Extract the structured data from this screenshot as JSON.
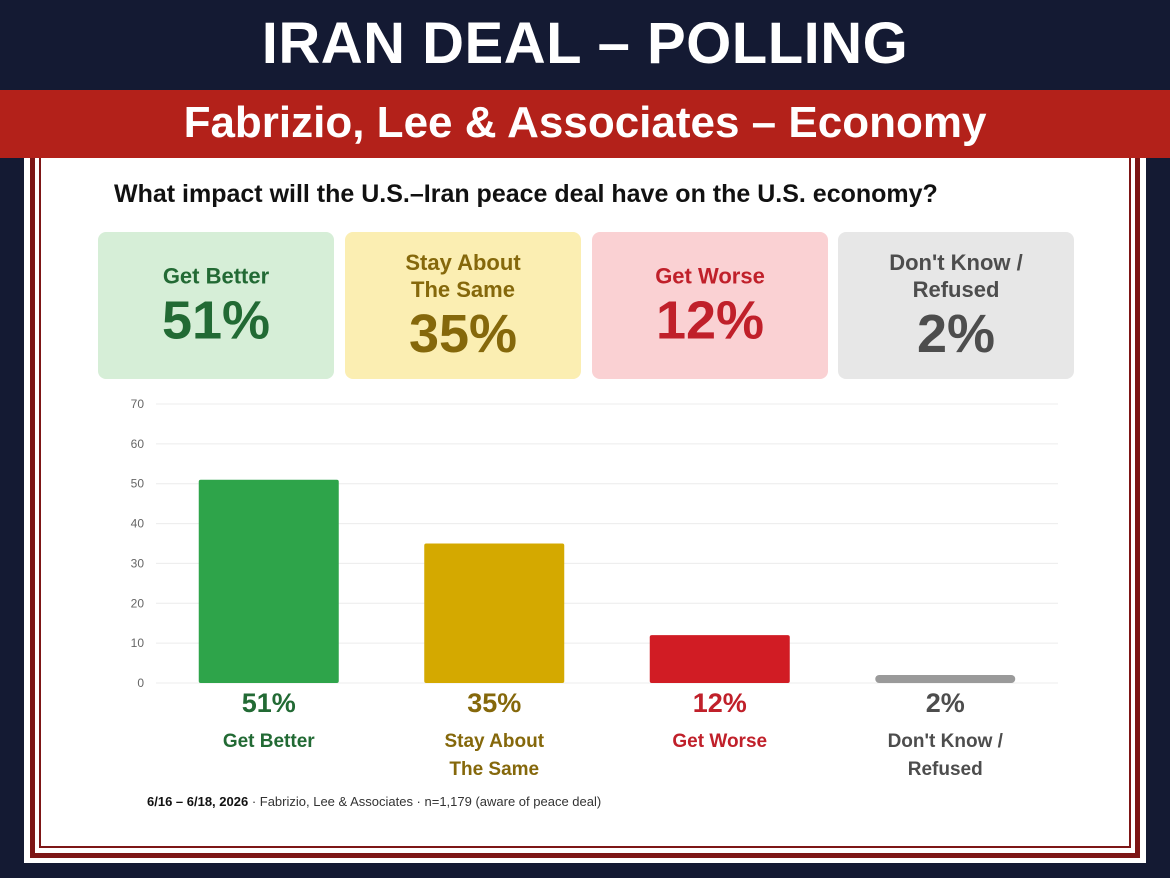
{
  "header": {
    "title": "IRAN DEAL – POLLING",
    "subtitle": "Fabrizio, Lee & Associates – Economy"
  },
  "question": "What impact will the U.S.–Iran peace deal have on the U.S. economy?",
  "cards": [
    {
      "label": "Get Better",
      "value": "51%",
      "color": "#226a34"
    },
    {
      "label": "Stay About The Same",
      "value": "35%",
      "color": "#85680b"
    },
    {
      "label": "Get Worse",
      "value": "12%",
      "color": "#c0202a"
    },
    {
      "label": "Don't Know / Refused",
      "value": "2%",
      "color": "#4d4d4d"
    }
  ],
  "chart_data": {
    "type": "bar",
    "categories": [
      "Get Better",
      "Stay About The Same",
      "Get Worse",
      "Don't Know / Refused"
    ],
    "category_lines": [
      [
        "Get Better"
      ],
      [
        "Stay About",
        "The Same"
      ],
      [
        "Get Worse"
      ],
      [
        "Don't Know /",
        "Refused"
      ]
    ],
    "values": [
      51,
      35,
      12,
      2
    ],
    "value_labels": [
      "51%",
      "35%",
      "12%",
      "2%"
    ],
    "bar_colors": [
      "#2ea44a",
      "#d4a900",
      "#d11c24",
      "#9a9a9a"
    ],
    "label_colors": [
      "#226a34",
      "#85680b",
      "#c0202a",
      "#4d4d4d"
    ],
    "yticks": [
      0,
      10,
      20,
      30,
      40,
      50,
      60,
      70
    ],
    "ylim": [
      0,
      70
    ],
    "grid": true,
    "title": "",
    "xlabel": "",
    "ylabel": ""
  },
  "footnote": {
    "dates": "6/16 – 6/18, 2026",
    "source": " · Fabrizio, Lee & Associates · n=1,179 (aware of peace deal)"
  }
}
